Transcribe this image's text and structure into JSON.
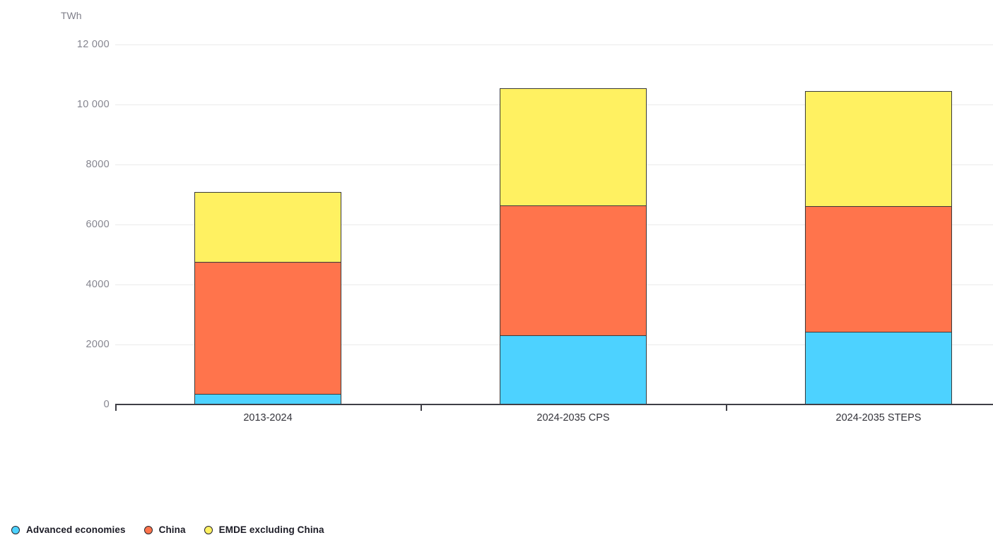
{
  "chart_data": {
    "type": "bar",
    "stacked": true,
    "grid": true,
    "legend_position": "bottom-left",
    "y_axis": {
      "unit": "TWh",
      "min": 0,
      "max": 12000,
      "tick_interval": 2000,
      "tick_labels": [
        "0",
        "2000",
        "4000",
        "6000",
        "8000",
        "10 000",
        "12 000"
      ]
    },
    "categories": [
      "2013-2024",
      "2024-2035 CPS",
      "2024-2035 STEPS"
    ],
    "series": [
      {
        "name": "Advanced economies",
        "color": "#4DD2FF",
        "values": [
          340,
          2280,
          2400
        ]
      },
      {
        "name": "China",
        "color": "#FF744C",
        "values": [
          4390,
          4330,
          4190
        ]
      },
      {
        "name": "EMDE excluding China",
        "color": "#FFF161",
        "values": [
          2350,
          3930,
          3860
        ]
      }
    ],
    "totals": [
      7080,
      10540,
      10450
    ]
  }
}
